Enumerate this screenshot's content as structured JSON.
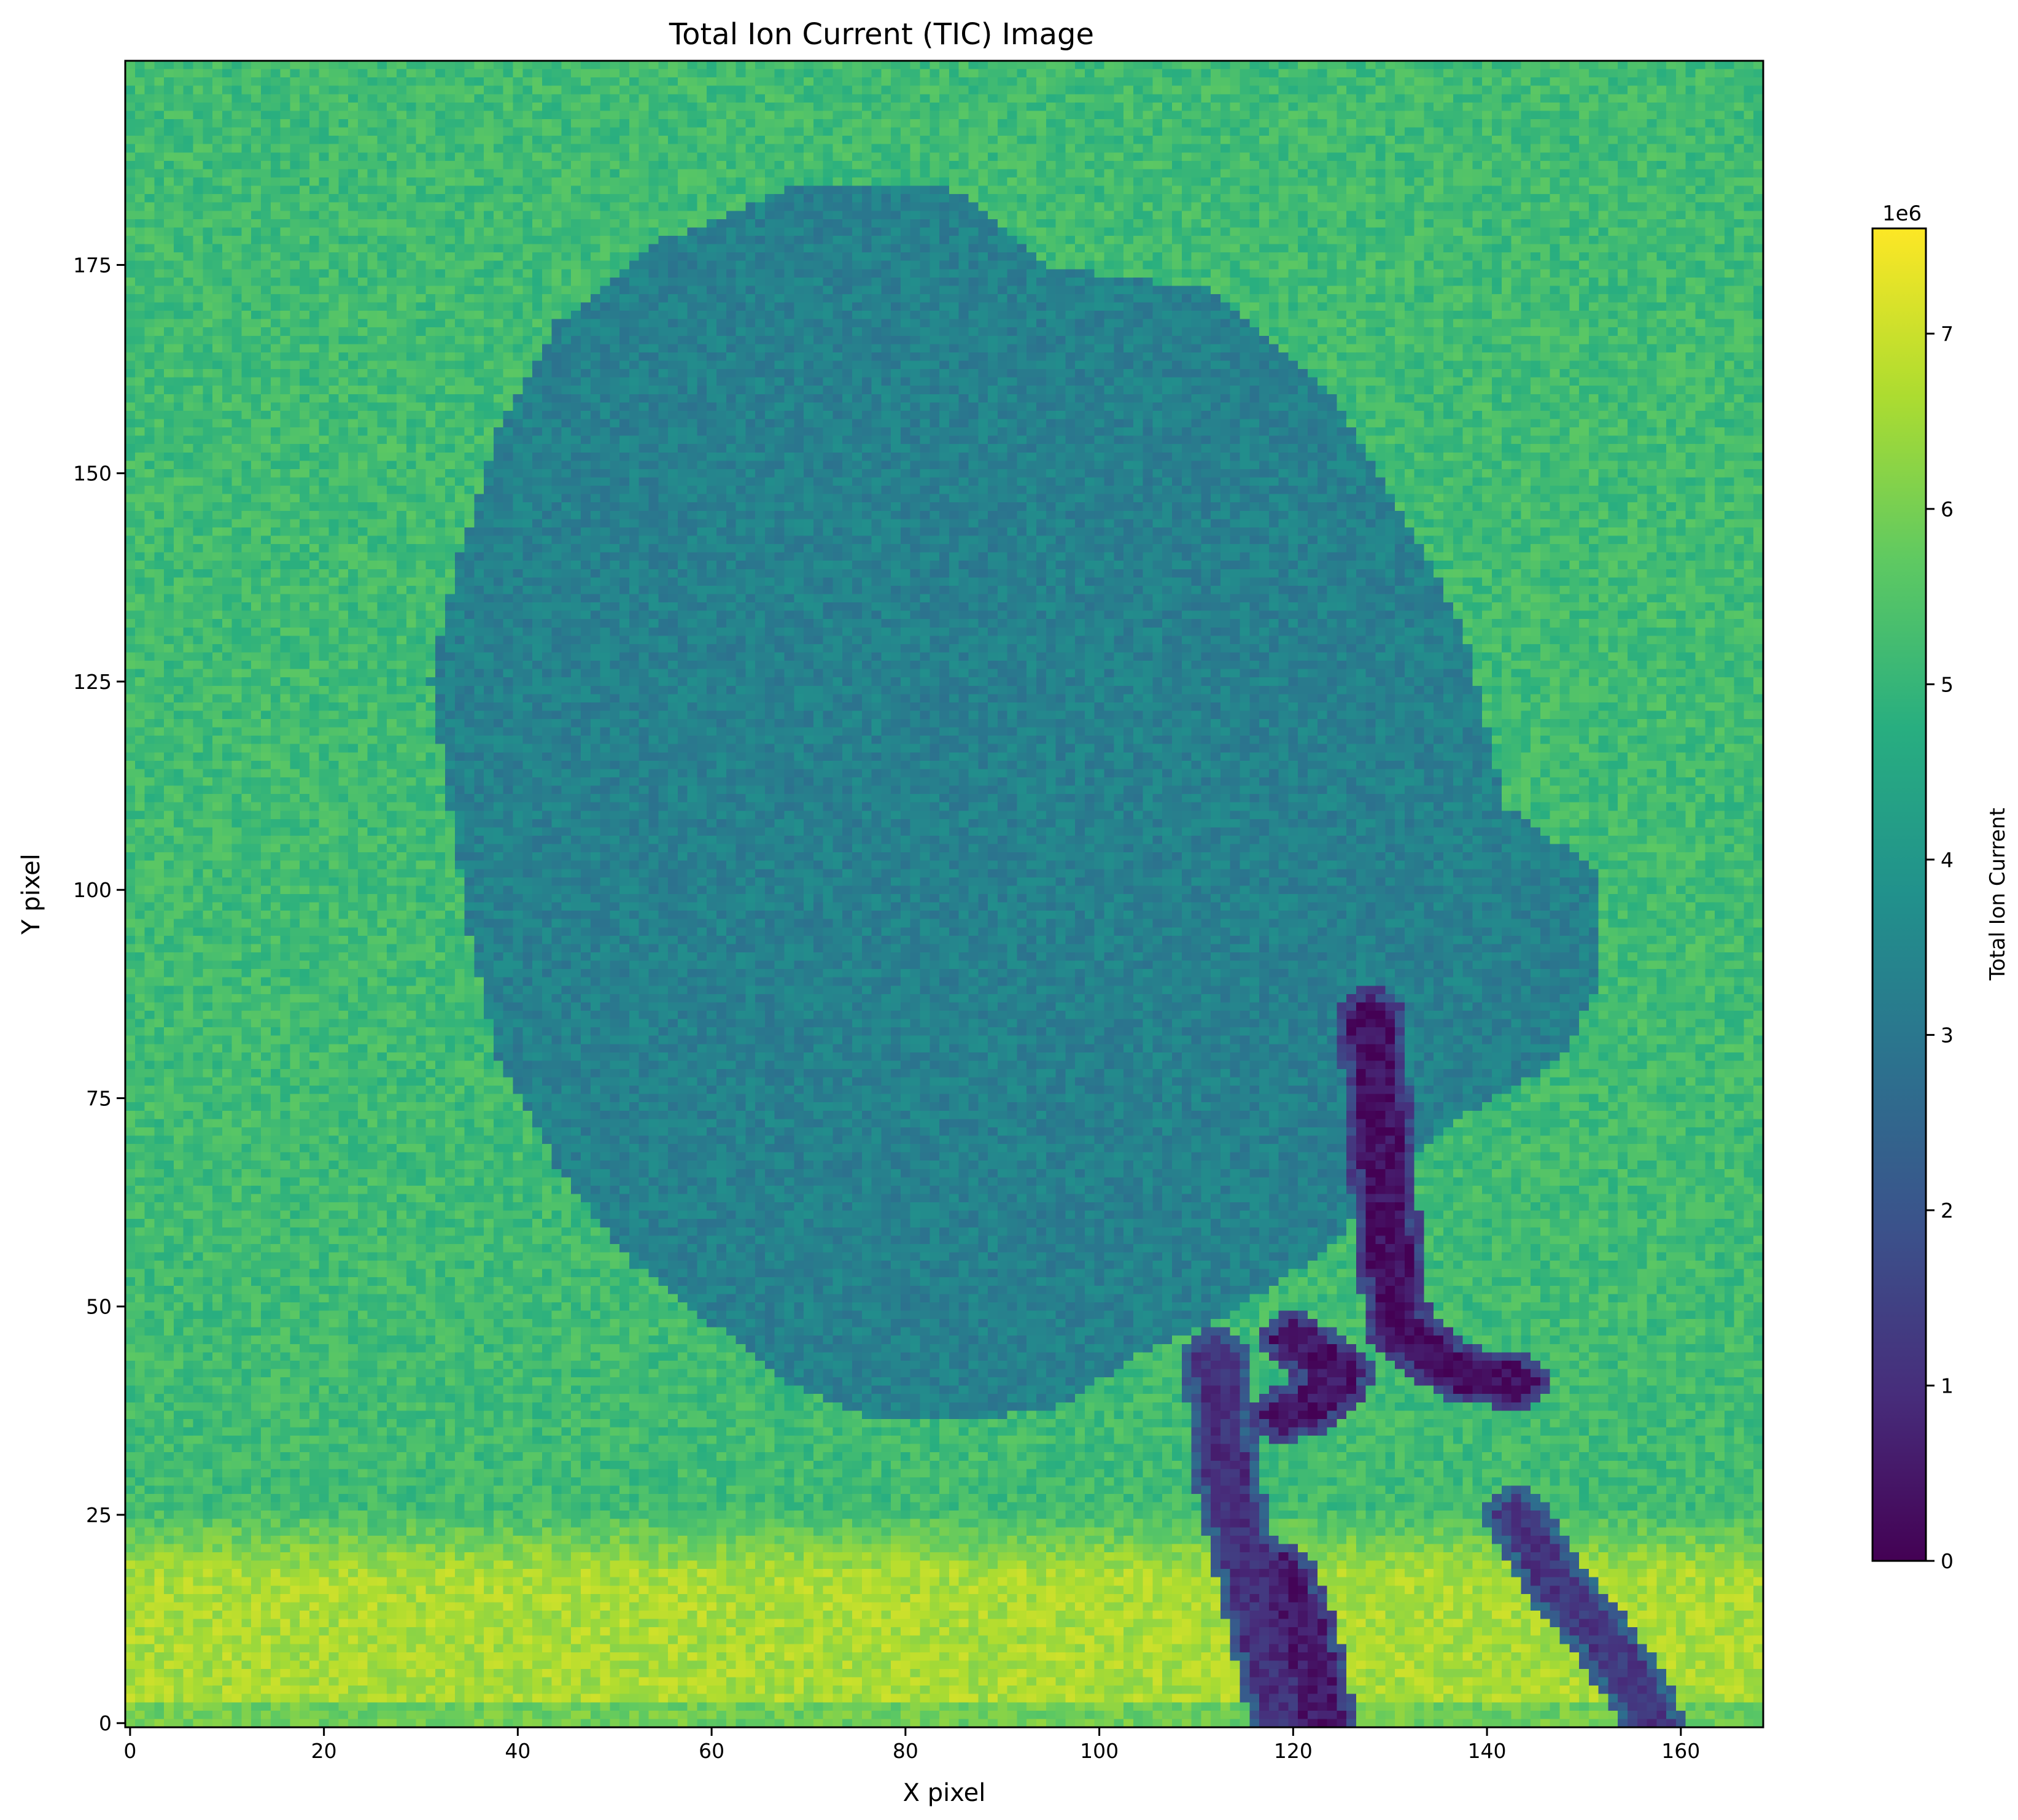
{
  "chart_data": {
    "type": "heatmap",
    "title": "Total Ion Current (TIC) Image",
    "xlabel": "X pixel",
    "ylabel": "Y pixel",
    "xlim": [
      -0.5,
      168.5
    ],
    "ylim": [
      -0.5,
      199.5
    ],
    "grid": {
      "cols": 169,
      "rows": 200
    },
    "origin": "lower",
    "x_ticks": [
      0,
      20,
      40,
      60,
      80,
      100,
      120,
      140,
      160
    ],
    "x_tick_labels": [
      "0",
      "20",
      "40",
      "60",
      "80",
      "100",
      "120",
      "140",
      "160"
    ],
    "y_ticks": [
      0,
      25,
      50,
      75,
      100,
      125,
      150,
      175
    ],
    "y_tick_labels": [
      "0",
      "25",
      "50",
      "75",
      "100",
      "125",
      "150",
      "175"
    ],
    "colormap": "viridis",
    "colorbar": {
      "label": "Total Ion Current",
      "offset_text": "1e6",
      "range": [
        0,
        7600000
      ],
      "ticks": [
        0,
        1,
        2,
        3,
        4,
        5,
        6,
        7
      ],
      "tick_labels": [
        "0",
        "1",
        "2",
        "3",
        "4",
        "5",
        "6",
        "7"
      ],
      "scale": 1000000
    },
    "regions": {
      "background_level": 5.2,
      "bottom_band": {
        "y_range": [
          3,
          18
        ],
        "level": 6.6
      },
      "tissue_blob": {
        "level": 3.3,
        "boundary": [
          [
            83,
            185
          ],
          [
            88,
            182
          ],
          [
            95,
            175
          ],
          [
            100,
            174
          ],
          [
            112,
            172
          ],
          [
            118,
            166
          ],
          [
            125,
            158
          ],
          [
            133,
            142
          ],
          [
            138,
            130
          ],
          [
            140,
            120
          ],
          [
            142,
            110
          ],
          [
            152,
            102
          ],
          [
            152,
            90
          ],
          [
            148,
            80
          ],
          [
            138,
            73
          ],
          [
            133,
            68
          ],
          [
            128,
            65
          ],
          [
            125,
            58
          ],
          [
            120,
            54
          ],
          [
            112,
            48
          ],
          [
            104,
            44
          ],
          [
            96,
            38
          ],
          [
            86,
            36
          ],
          [
            76,
            37
          ],
          [
            68,
            41
          ],
          [
            60,
            48
          ],
          [
            52,
            55
          ],
          [
            44,
            67
          ],
          [
            38,
            80
          ],
          [
            35,
            95
          ],
          [
            33,
            110
          ],
          [
            31,
            125
          ],
          [
            34,
            140
          ],
          [
            38,
            155
          ],
          [
            44,
            168
          ],
          [
            55,
            178
          ],
          [
            68,
            184
          ],
          [
            78,
            185
          ]
        ]
      },
      "dark_structures": [
        {
          "label": "",
          "level": 0.3,
          "points": [
            [
              128,
              85
            ],
            [
              129,
              70
            ],
            [
              130,
              55
            ],
            [
              131,
              47
            ],
            [
              137,
              42
            ],
            [
              143,
              41
            ]
          ]
        },
        {
          "label": "",
          "level": 0.4,
          "points": [
            [
              120,
              46
            ],
            [
              125,
              42
            ],
            [
              122,
              38
            ],
            [
              119,
              37
            ]
          ]
        },
        {
          "label": "",
          "level": 1.0,
          "points": [
            [
              112,
              44
            ],
            [
              113,
              30
            ],
            [
              116,
              15
            ],
            [
              118,
              5
            ],
            [
              119,
              0
            ]
          ]
        },
        {
          "label": "",
          "level": 0.5,
          "points": [
            [
              119,
              18
            ],
            [
              122,
              8
            ],
            [
              123,
              0
            ]
          ]
        },
        {
          "label": "",
          "level": 1.2,
          "points": [
            [
              143,
              25
            ],
            [
              147,
              17
            ],
            [
              152,
              10
            ],
            [
              156,
              3
            ],
            [
              157,
              0
            ]
          ]
        }
      ]
    }
  }
}
